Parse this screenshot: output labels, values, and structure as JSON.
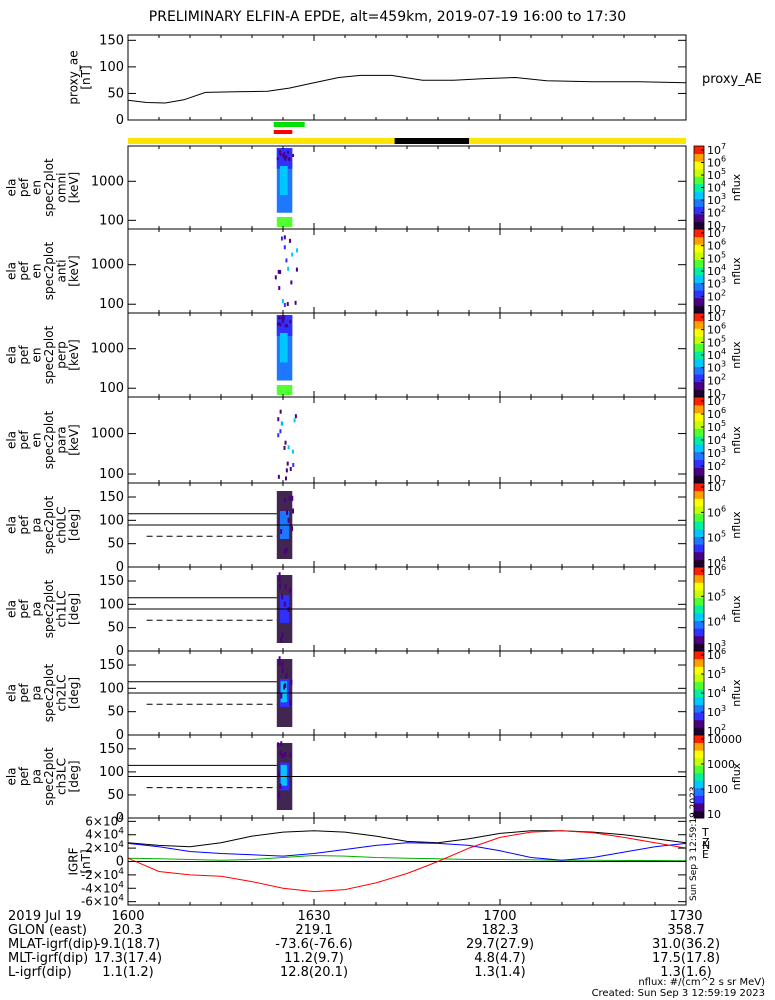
{
  "title": "PRELIMINARY ELFIN-A EPDE, alt=459km, 2019-07-19 16:00 to 17:30",
  "time_ticks": [
    "1600",
    "1630",
    "1700",
    "1730"
  ],
  "colors": {
    "bar_yellow": "#ffe400",
    "bar_green": "#00e000",
    "bar_red": "#ff0000",
    "bar_black": "#000000"
  },
  "chart_data": [
    {
      "type": "line",
      "ylabel": [
        "proxy_ae",
        "[nT]"
      ],
      "legend": "proxy_AE",
      "ylim": [
        0,
        160
      ],
      "yticks": [
        "0",
        "50",
        "100",
        "150"
      ],
      "x_minutes": [
        0,
        6,
        12,
        18,
        25,
        35,
        45,
        52,
        60,
        68,
        75,
        85,
        95,
        105,
        115,
        125,
        135,
        150,
        165,
        180
      ],
      "series": [
        {
          "values": [
            37,
            33,
            32,
            38,
            52,
            53,
            54,
            60,
            70,
            80,
            84,
            84,
            75,
            75,
            78,
            80,
            74,
            72,
            72,
            70
          ]
        }
      ]
    },
    {
      "type": "heatmap",
      "ylabel": [
        "ela",
        "pef",
        "en",
        "spec2plot",
        "omni",
        "[keV]"
      ],
      "ytick_values": [
        100,
        1000
      ],
      "yticks": [
        "100",
        "1000"
      ],
      "ylim": [
        60,
        8000
      ],
      "yscale": "log",
      "colorbar": {
        "label": "nflux",
        "ticks": [
          "10",
          "10^2",
          "10^3",
          "10^4",
          "10^5",
          "10^6",
          "10^7"
        ]
      }
    },
    {
      "type": "heatmap",
      "ylabel": [
        "ela",
        "pef",
        "en",
        "spec2plot",
        "anti",
        "[keV]"
      ],
      "ytick_values": [
        100,
        1000
      ],
      "yticks": [
        "100",
        "1000"
      ],
      "ylim": [
        60,
        8000
      ],
      "yscale": "log",
      "colorbar": {
        "label": "nflux",
        "ticks": [
          "10",
          "10^2",
          "10^3",
          "10^4",
          "10^5",
          "10^6",
          "10^7"
        ]
      }
    },
    {
      "type": "heatmap",
      "ylabel": [
        "ela",
        "pef",
        "en",
        "spec2plot",
        "perp",
        "[keV]"
      ],
      "ytick_values": [
        100,
        1000
      ],
      "yticks": [
        "100",
        "1000"
      ],
      "ylim": [
        60,
        8000
      ],
      "yscale": "log",
      "colorbar": {
        "label": "nflux",
        "ticks": [
          "10",
          "10^2",
          "10^3",
          "10^4",
          "10^5",
          "10^6",
          "10^7"
        ]
      }
    },
    {
      "type": "heatmap",
      "ylabel": [
        "ela",
        "pef",
        "en",
        "spec2plot",
        "para",
        "[keV]"
      ],
      "ytick_values": [
        100,
        1000
      ],
      "yticks": [
        "100",
        "1000"
      ],
      "ylim": [
        60,
        8000
      ],
      "yscale": "log",
      "colorbar": {
        "label": "nflux",
        "ticks": [
          "10",
          "10^2",
          "10^3",
          "10^4",
          "10^5",
          "10^6",
          "10^7"
        ]
      }
    },
    {
      "type": "heatmap",
      "ylabel": [
        "ela",
        "pef",
        "pa",
        "spec2plot",
        "ch0LC",
        "[deg]"
      ],
      "ytick_values": [
        0,
        50,
        100,
        150
      ],
      "yticks": [
        "0",
        "50",
        "100",
        "150"
      ],
      "ylim": [
        0,
        180
      ],
      "yscale": "linear",
      "reference_lines": [
        114,
        90,
        66
      ],
      "colorbar": {
        "label": "nflux",
        "ticks": [
          "10^4",
          "10^5",
          "10^6",
          "10^7"
        ]
      }
    },
    {
      "type": "heatmap",
      "ylabel": [
        "ela",
        "pef",
        "pa",
        "spec2plot",
        "ch1LC",
        "[deg]"
      ],
      "ytick_values": [
        0,
        50,
        100,
        150
      ],
      "yticks": [
        "0",
        "50",
        "100",
        "150"
      ],
      "ylim": [
        0,
        180
      ],
      "yscale": "linear",
      "reference_lines": [
        114,
        90,
        66
      ],
      "colorbar": {
        "label": "nflux",
        "ticks": [
          "10^3",
          "10^4",
          "10^5",
          "10^6"
        ]
      }
    },
    {
      "type": "heatmap",
      "ylabel": [
        "ela",
        "pef",
        "pa",
        "spec2plot",
        "ch2LC",
        "[deg]"
      ],
      "ytick_values": [
        0,
        50,
        100,
        150
      ],
      "yticks": [
        "0",
        "50",
        "100",
        "150"
      ],
      "ylim": [
        0,
        180
      ],
      "yscale": "linear",
      "reference_lines": [
        114,
        90,
        66
      ],
      "colorbar": {
        "label": "nflux",
        "ticks": [
          "10^2",
          "10^3",
          "10^4",
          "10^5",
          "10^6"
        ]
      }
    },
    {
      "type": "heatmap",
      "ylabel": [
        "ela",
        "pef",
        "pa",
        "spec2plot",
        "ch3LC",
        "[deg]"
      ],
      "ytick_values": [
        0,
        50,
        100,
        150
      ],
      "yticks": [
        "0",
        "50",
        "100",
        "150"
      ],
      "ylim": [
        0,
        180
      ],
      "yscale": "linear",
      "reference_lines": [
        114,
        90,
        66
      ],
      "colorbar": {
        "label": "nflux",
        "ticks": [
          "10",
          "100",
          "1000",
          "10000"
        ]
      }
    },
    {
      "type": "line",
      "ylabel": [
        "IGRF",
        "[nT]"
      ],
      "ylim": [
        -65000,
        65000
      ],
      "ytick_values": [
        -60000,
        -40000,
        -20000,
        0,
        20000,
        40000,
        60000
      ],
      "yticks": [
        "-6×10^4",
        "-4×10^4",
        "-2×10^4",
        "0",
        "2×10^4",
        "4×10^4",
        "6×10^4"
      ],
      "x_minutes": [
        0,
        10,
        20,
        30,
        40,
        50,
        60,
        70,
        80,
        90,
        100,
        110,
        120,
        130,
        140,
        150,
        160,
        170,
        180
      ],
      "series": [
        {
          "name": "T",
          "color": "#000000",
          "values": [
            28000,
            24000,
            22000,
            28000,
            38000,
            44000,
            46000,
            44000,
            38000,
            30000,
            28000,
            34000,
            42000,
            46000,
            46000,
            44000,
            40000,
            34000,
            28000
          ]
        },
        {
          "name": "E",
          "color": "#00b000",
          "values": [
            5000,
            4000,
            3000,
            2000,
            3000,
            6000,
            9000,
            8000,
            6000,
            5000,
            4000,
            3000,
            3000,
            2500,
            2000,
            2000,
            1500,
            1500,
            1000
          ]
        },
        {
          "name": "N",
          "color": "#0000ff",
          "values": [
            27000,
            22000,
            15000,
            12000,
            10000,
            8000,
            12000,
            18000,
            24000,
            28000,
            27000,
            24000,
            16000,
            6000,
            2000,
            6000,
            14000,
            22000,
            27000
          ]
        },
        {
          "name": "Z",
          "color": "#ff0000",
          "values": [
            5000,
            -15000,
            -20000,
            -22000,
            -30000,
            -40000,
            -45000,
            -42000,
            -32000,
            -18000,
            0,
            20000,
            36000,
            44000,
            46000,
            43000,
            36000,
            28000,
            20000
          ]
        }
      ],
      "side_label": "Sun Sep  3 12:59:19 2023"
    }
  ],
  "bottom_table": {
    "rows": [
      {
        "label": "2019 Jul 19",
        "values": [
          "1600",
          "1630",
          "1700",
          "1730"
        ]
      },
      {
        "label": "GLON (east)",
        "values": [
          "20.3",
          "219.1",
          "182.3",
          "358.7"
        ]
      },
      {
        "label": "MLAT-igrf(dip)",
        "values": [
          "-9.1(18.7)",
          "-73.6(-76.6)",
          "29.7(27.9)",
          "31.0(36.2)"
        ]
      },
      {
        "label": "MLT-igrf(dip)",
        "values": [
          "17.3(17.4)",
          "11.2(9.7)",
          "4.8(4.7)",
          "17.5(17.8)"
        ]
      },
      {
        "label": "L-igrf(dip)",
        "values": [
          "1.1(1.2)",
          "12.8(20.1)",
          "1.3(1.4)",
          "1.3(1.6)"
        ]
      }
    ]
  },
  "footer": {
    "units": "nflux: #/(cm^2 s sr MeV)",
    "created": "Created: Sun Sep  3 12:59:19 2023"
  }
}
